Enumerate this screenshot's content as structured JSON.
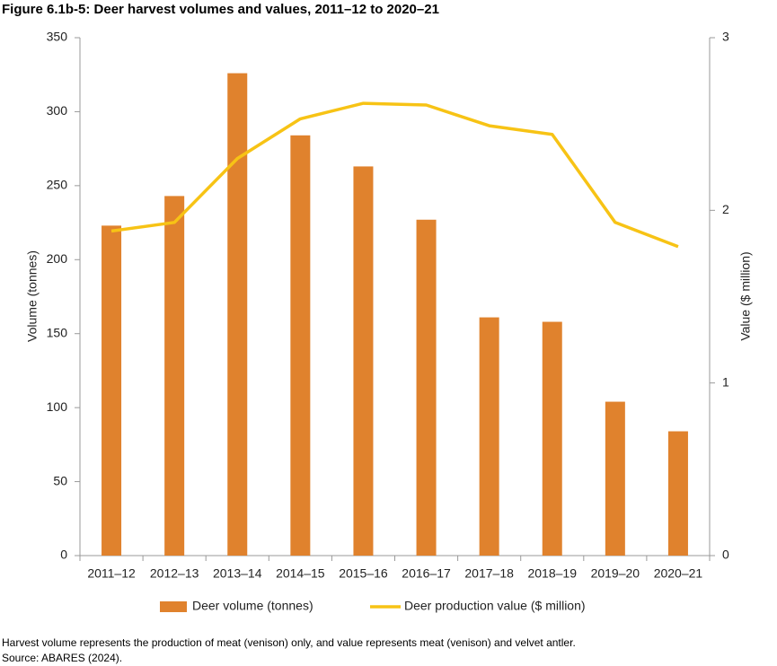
{
  "chart_data": {
    "type": "bar_line",
    "title": "Figure 6.1b-5: Deer harvest volumes and values, 2011–12 to 2020–21",
    "categories": [
      "2011–12",
      "2012–13",
      "2013–14",
      "2014–15",
      "2015–16",
      "2016–17",
      "2017–18",
      "2018–19",
      "2019–20",
      "2020–21"
    ],
    "series": [
      {
        "name": "Deer volume (tonnes)",
        "type": "bar",
        "color": "#e0822d",
        "values": [
          223,
          243,
          326,
          284,
          263,
          227,
          161,
          158,
          104,
          84
        ]
      },
      {
        "name": "Deer production value ($ million)",
        "type": "line",
        "axis": "y2",
        "color": "#f7c315",
        "values": [
          1.88,
          1.93,
          2.3,
          2.53,
          2.62,
          2.61,
          2.49,
          2.44,
          1.93,
          1.79
        ]
      }
    ],
    "ylabel": "Volume (tonnes)",
    "y2label": "Value ($ million)",
    "ylim": [
      0,
      350
    ],
    "yticks": [
      0,
      50,
      100,
      150,
      200,
      250,
      300,
      350
    ],
    "y2lim": [
      0,
      3
    ],
    "y2ticks": [
      0,
      1,
      2,
      3
    ],
    "legend": "bottom",
    "note": "Harvest volume represents the production of meat (venison) only, and value represents meat (venison) and velvet antler.",
    "source": "Source: ABARES (2024)."
  }
}
